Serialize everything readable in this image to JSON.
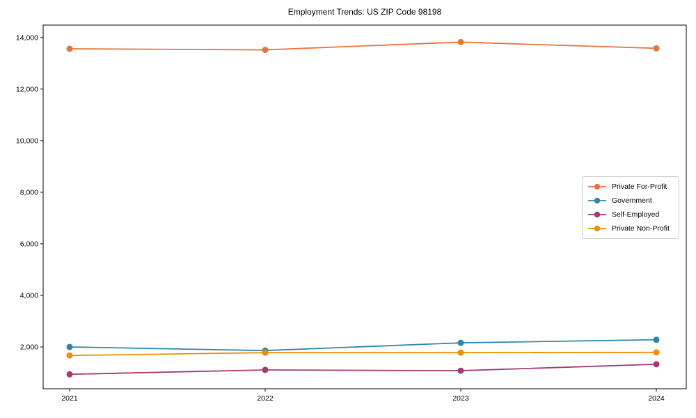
{
  "chart_data": {
    "type": "line",
    "title": "Employment Trends: US ZIP Code 98198",
    "x_categories": [
      "2021",
      "2022",
      "2023",
      "2024"
    ],
    "series": [
      {
        "name": "Private For-Profit",
        "color": "#E8743B",
        "values": [
          13560,
          13520,
          13820,
          13580
        ]
      },
      {
        "name": "Government",
        "color": "#2E86AB",
        "values": [
          2000,
          1860,
          2160,
          2280
        ]
      },
      {
        "name": "Self-Employed",
        "color": "#A23B72",
        "values": [
          940,
          1110,
          1080,
          1330
        ]
      },
      {
        "name": "Private Non-Profit",
        "color": "#F18F01",
        "values": [
          1670,
          1780,
          1780,
          1790
        ]
      }
    ],
    "y_axis": {
      "range": [
        380,
        14480
      ],
      "ticks": [
        {
          "value": 2000,
          "label": "2,000"
        },
        {
          "value": 4000,
          "label": "4,000"
        },
        {
          "value": 6000,
          "label": "6,000"
        },
        {
          "value": 8000,
          "label": "8,000"
        },
        {
          "value": 10000,
          "label": "10,000"
        },
        {
          "value": 12000,
          "label": "12,000"
        },
        {
          "value": 14000,
          "label": "14,000"
        }
      ]
    },
    "xlabel": "",
    "ylabel": "",
    "grid": false,
    "legend_position": "right",
    "axis_color": "#000000",
    "legend_border_color": "#cccccc"
  }
}
